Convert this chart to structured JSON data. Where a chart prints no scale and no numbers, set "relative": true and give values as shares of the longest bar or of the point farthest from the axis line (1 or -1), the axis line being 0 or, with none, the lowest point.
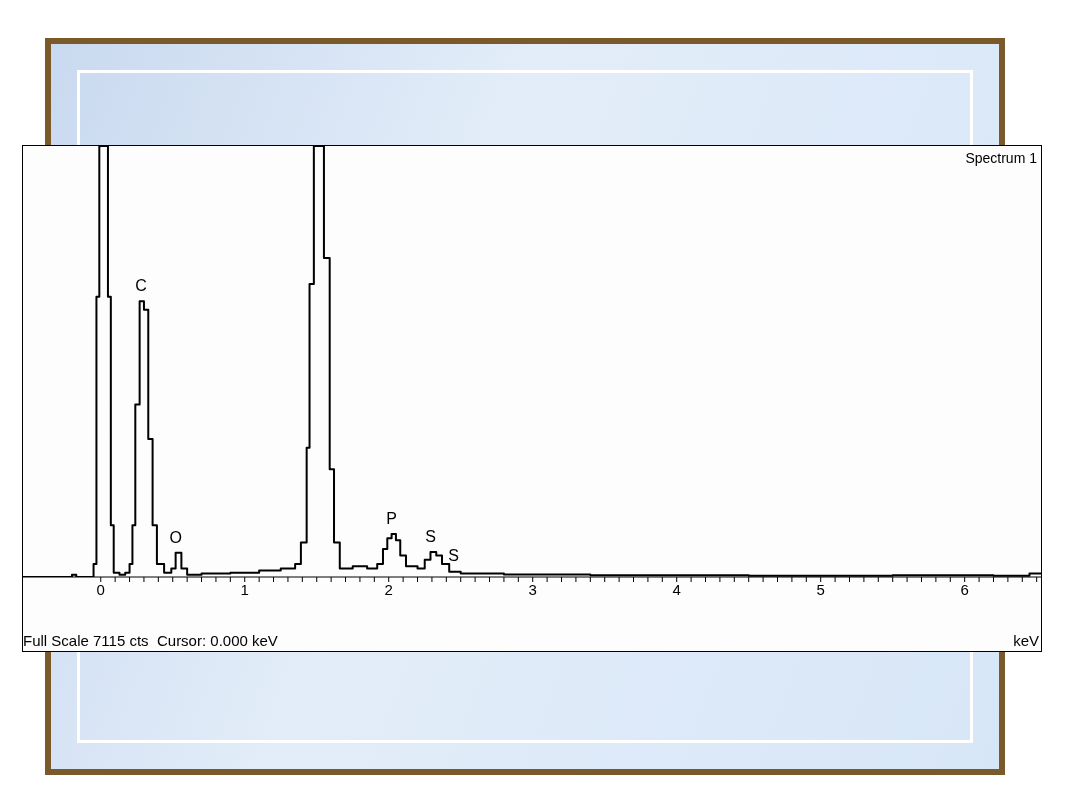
{
  "chart_data": {
    "type": "step",
    "relative": true,
    "xlabel": "keV",
    "marker": "none",
    "xlim": [
      -0.54,
      6.53
    ],
    "xticks": [
      0,
      {
        "value": 0.1,
        "label": null
      },
      {
        "value": 0.2,
        "label": null
      },
      {
        "value": 0.3,
        "label": null
      },
      {
        "value": 0.4,
        "label": null
      },
      {
        "value": 0.5,
        "label": null
      },
      {
        "value": 0.6,
        "label": null
      },
      {
        "value": 0.7,
        "label": null
      },
      {
        "value": 0.8,
        "label": null
      },
      {
        "value": 0.9,
        "label": null
      },
      1,
      {
        "value": 1.1,
        "label": null
      },
      {
        "value": 1.2,
        "label": null
      },
      {
        "value": 1.3,
        "label": null
      },
      {
        "value": 1.4,
        "label": null
      },
      {
        "value": 1.5,
        "label": null
      },
      {
        "value": 1.6,
        "label": null
      },
      {
        "value": 1.7,
        "label": null
      },
      {
        "value": 1.8,
        "label": null
      },
      {
        "value": 1.9,
        "label": null
      },
      2,
      {
        "value": 2.1,
        "label": null
      },
      {
        "value": 2.2,
        "label": null
      },
      {
        "value": 2.3,
        "label": null
      },
      {
        "value": 2.4,
        "label": null
      },
      {
        "value": 2.5,
        "label": null
      },
      {
        "value": 2.6,
        "label": null
      },
      {
        "value": 2.7,
        "label": null
      },
      {
        "value": 2.8,
        "label": null
      },
      {
        "value": 2.9,
        "label": null
      },
      3,
      {
        "value": 3.1,
        "label": null
      },
      {
        "value": 3.2,
        "label": null
      },
      {
        "value": 3.3,
        "label": null
      },
      {
        "value": 3.4,
        "label": null
      },
      {
        "value": 3.5,
        "label": null
      },
      {
        "value": 3.6,
        "label": null
      },
      {
        "value": 3.7,
        "label": null
      },
      {
        "value": 3.8,
        "label": null
      },
      {
        "value": 3.9,
        "label": null
      },
      4,
      {
        "value": 4.1,
        "label": null
      },
      {
        "value": 4.2,
        "label": null
      },
      {
        "value": 4.3,
        "label": null
      },
      {
        "value": 4.4,
        "label": null
      },
      {
        "value": 4.5,
        "label": null
      },
      {
        "value": 4.6,
        "label": null
      },
      {
        "value": 4.7,
        "label": null
      },
      {
        "value": 4.8,
        "label": null
      },
      {
        "value": 4.9,
        "label": null
      },
      5,
      {
        "value": 5.1,
        "label": null
      },
      {
        "value": 5.2,
        "label": null
      },
      {
        "value": 5.3,
        "label": null
      },
      {
        "value": 5.4,
        "label": null
      },
      {
        "value": 5.5,
        "label": null
      },
      {
        "value": 5.6,
        "label": null
      },
      {
        "value": 5.7,
        "label": null
      },
      {
        "value": 5.8,
        "label": null
      },
      {
        "value": 5.9,
        "label": null
      },
      6,
      {
        "value": 6.1,
        "label": null
      },
      {
        "value": 6.2,
        "label": null
      },
      {
        "value": 6.3,
        "label": null
      },
      {
        "value": 6.4,
        "label": null
      },
      {
        "value": 6.5,
        "label": null
      }
    ],
    "series": [
      {
        "color": "#000000",
        "x": [
          -0.54,
          -0.2,
          -0.17,
          -0.05,
          -0.03,
          -0.01,
          0.03,
          0.05,
          0.07,
          0.09,
          0.13,
          0.17,
          0.2,
          0.22,
          0.24,
          0.27,
          0.3,
          0.33,
          0.36,
          0.39,
          0.44,
          0.49,
          0.52,
          0.56,
          0.6,
          0.7,
          0.9,
          1.1,
          1.25,
          1.35,
          1.39,
          1.43,
          1.45,
          1.48,
          1.52,
          1.55,
          1.59,
          1.62,
          1.66,
          1.75,
          1.85,
          1.92,
          1.96,
          1.99,
          2.02,
          2.05,
          2.08,
          2.12,
          2.2,
          2.25,
          2.29,
          2.33,
          2.37,
          2.42,
          2.5,
          2.8,
          3.2,
          3.4,
          4.5,
          5.5,
          6.2,
          6.45,
          6.53
        ],
        "values": [
          0,
          0.005,
          0,
          0.03,
          0.65,
          1,
          1,
          0.65,
          0.12,
          0.01,
          0.005,
          0.01,
          0.03,
          0.12,
          0.4,
          0.64,
          0.62,
          0.32,
          0.12,
          0.03,
          0.01,
          0.02,
          0.056,
          0.02,
          0.005,
          0.008,
          0.01,
          0.015,
          0.02,
          0.03,
          0.08,
          0.3,
          0.68,
          1,
          1,
          0.74,
          0.25,
          0.08,
          0.02,
          0.025,
          0.02,
          0.03,
          0.065,
          0.09,
          0.1,
          0.085,
          0.05,
          0.025,
          0.02,
          0.04,
          0.058,
          0.05,
          0.03,
          0.012,
          0.008,
          0.006,
          0.006,
          0.004,
          0.003,
          0.004,
          0.003,
          0.008,
          0.006
        ]
      }
    ],
    "annotations": [
      "Spectrum 1",
      "Full Scale 7115 cts  Cursor: 0.000 keV",
      {
        "text": "C",
        "x": 0.28,
        "y": 0.64
      },
      {
        "text": "O",
        "x": 0.52,
        "y": 0.056
      },
      {
        "text": "P",
        "x": 2.02,
        "y": 0.1
      },
      {
        "text": "S",
        "x": 2.29,
        "y": 0.058
      },
      {
        "text": "S",
        "x": 2.45,
        "y": 0.015
      }
    ]
  }
}
